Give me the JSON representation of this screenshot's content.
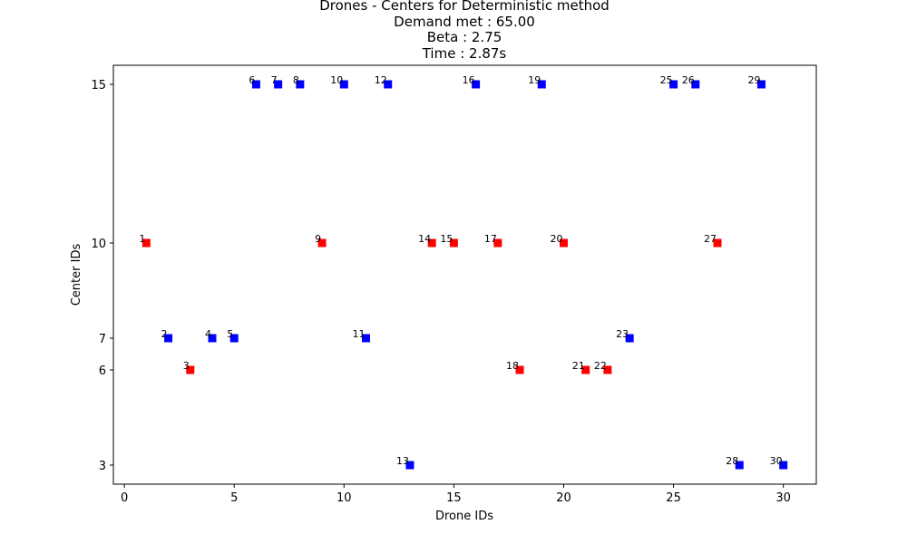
{
  "chart_data": {
    "type": "scatter",
    "title_lines": [
      "Drones - Centers for Deterministic method",
      "Demand met : 65.00",
      "Beta : 2.75",
      "Time : 2.87s"
    ],
    "xlabel": "Drone IDs",
    "ylabel": "Center IDs",
    "xlim": [
      -0.5,
      31.5
    ],
    "ylim": [
      2.4,
      15.6
    ],
    "x_ticks": [
      0,
      5,
      10,
      15,
      20,
      25,
      30
    ],
    "y_ticks": [
      3,
      6,
      7,
      10,
      15
    ],
    "grid": false,
    "marker": "square",
    "colors": {
      "blue": "#0000ff",
      "red": "#ff0000"
    },
    "points": [
      {
        "x": 1,
        "y": 10,
        "label": "1",
        "color": "red"
      },
      {
        "x": 2,
        "y": 7,
        "label": "2",
        "color": "blue"
      },
      {
        "x": 3,
        "y": 6,
        "label": "3",
        "color": "red"
      },
      {
        "x": 4,
        "y": 7,
        "label": "4",
        "color": "blue"
      },
      {
        "x": 5,
        "y": 7,
        "label": "5",
        "color": "blue"
      },
      {
        "x": 6,
        "y": 15,
        "label": "6",
        "color": "blue"
      },
      {
        "x": 7,
        "y": 15,
        "label": "7",
        "color": "blue"
      },
      {
        "x": 8,
        "y": 15,
        "label": "8",
        "color": "blue"
      },
      {
        "x": 9,
        "y": 10,
        "label": "9",
        "color": "red"
      },
      {
        "x": 10,
        "y": 15,
        "label": "10",
        "color": "blue"
      },
      {
        "x": 11,
        "y": 7,
        "label": "11",
        "color": "blue"
      },
      {
        "x": 12,
        "y": 15,
        "label": "12",
        "color": "blue"
      },
      {
        "x": 13,
        "y": 3,
        "label": "13",
        "color": "blue"
      },
      {
        "x": 14,
        "y": 10,
        "label": "14",
        "color": "red"
      },
      {
        "x": 15,
        "y": 10,
        "label": "15",
        "color": "red"
      },
      {
        "x": 16,
        "y": 15,
        "label": "16",
        "color": "blue"
      },
      {
        "x": 17,
        "y": 10,
        "label": "17",
        "color": "red"
      },
      {
        "x": 18,
        "y": 6,
        "label": "18",
        "color": "red"
      },
      {
        "x": 19,
        "y": 15,
        "label": "19",
        "color": "blue"
      },
      {
        "x": 20,
        "y": 10,
        "label": "20",
        "color": "red"
      },
      {
        "x": 21,
        "y": 6,
        "label": "21",
        "color": "red"
      },
      {
        "x": 22,
        "y": 6,
        "label": "22",
        "color": "red"
      },
      {
        "x": 23,
        "y": 7,
        "label": "23",
        "color": "blue"
      },
      {
        "x": 25,
        "y": 15,
        "label": "25",
        "color": "blue"
      },
      {
        "x": 26,
        "y": 15,
        "label": "26",
        "color": "blue"
      },
      {
        "x": 27,
        "y": 10,
        "label": "27",
        "color": "red"
      },
      {
        "x": 28,
        "y": 3,
        "label": "28",
        "color": "blue"
      },
      {
        "x": 29,
        "y": 15,
        "label": "29",
        "color": "blue"
      },
      {
        "x": 30,
        "y": 3,
        "label": "30",
        "color": "blue"
      }
    ]
  }
}
